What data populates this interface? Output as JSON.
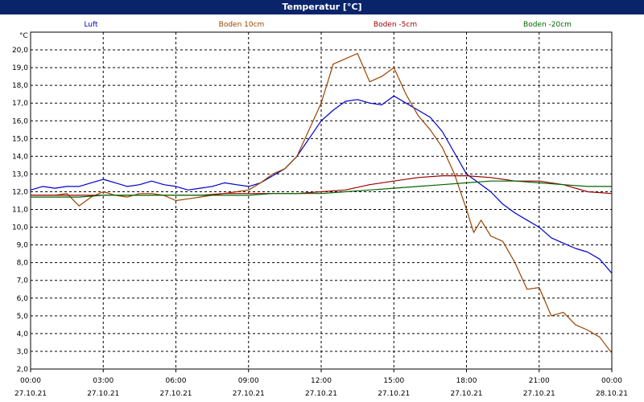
{
  "window": {
    "title": "Temperatur [°C]"
  },
  "chart_data": {
    "type": "line",
    "title": "Temperatur [°C]",
    "ylabel": "°C",
    "ylim": [
      2.0,
      21.0
    ],
    "y_ticks": [
      "2,0",
      "3,0",
      "4,0",
      "5,0",
      "6,0",
      "7,0",
      "8,0",
      "9,0",
      "10,0",
      "11,0",
      "12,0",
      "13,0",
      "14,0",
      "15,0",
      "16,0",
      "17,0",
      "18,0",
      "19,0",
      "20,0"
    ],
    "y_tick_values": [
      2,
      3,
      4,
      5,
      6,
      7,
      8,
      9,
      10,
      11,
      12,
      13,
      14,
      15,
      16,
      17,
      18,
      19,
      20
    ],
    "xlim": [
      0,
      24
    ],
    "x_ticks": [
      {
        "time": "00:00",
        "date": "27.10.21",
        "hour": 0
      },
      {
        "time": "03:00",
        "date": "27.10.21",
        "hour": 3
      },
      {
        "time": "06:00",
        "date": "27.10.21",
        "hour": 6
      },
      {
        "time": "09:00",
        "date": "27.10.21",
        "hour": 9
      },
      {
        "time": "12:00",
        "date": "27.10.21",
        "hour": 12
      },
      {
        "time": "15:00",
        "date": "27.10.21",
        "hour": 15
      },
      {
        "time": "18:00",
        "date": "27.10.21",
        "hour": 18
      },
      {
        "time": "21:00",
        "date": "27.10.21",
        "hour": 21
      },
      {
        "time": "00:00",
        "date": "28.10.21",
        "hour": 24
      }
    ],
    "grid": true,
    "legend_position": "top",
    "series": [
      {
        "name": "Luft",
        "color": "#0000cc",
        "points": [
          [
            0,
            12.1
          ],
          [
            0.5,
            12.3
          ],
          [
            1,
            12.2
          ],
          [
            1.5,
            12.3
          ],
          [
            2,
            12.3
          ],
          [
            2.5,
            12.5
          ],
          [
            3,
            12.7
          ],
          [
            3.5,
            12.5
          ],
          [
            4,
            12.3
          ],
          [
            4.5,
            12.4
          ],
          [
            5,
            12.6
          ],
          [
            5.5,
            12.4
          ],
          [
            6,
            12.3
          ],
          [
            6.5,
            12.1
          ],
          [
            7,
            12.2
          ],
          [
            7.5,
            12.3
          ],
          [
            8,
            12.5
          ],
          [
            8.5,
            12.4
          ],
          [
            9,
            12.3
          ],
          [
            9.5,
            12.5
          ],
          [
            10,
            12.9
          ],
          [
            10.5,
            13.3
          ],
          [
            11,
            14.0
          ],
          [
            11.5,
            15.0
          ],
          [
            12,
            16.0
          ],
          [
            12.5,
            16.6
          ],
          [
            13,
            17.1
          ],
          [
            13.5,
            17.2
          ],
          [
            14,
            17.0
          ],
          [
            14.5,
            16.9
          ],
          [
            15,
            17.4
          ],
          [
            15.5,
            17.0
          ],
          [
            16,
            16.6
          ],
          [
            16.5,
            16.2
          ],
          [
            17,
            15.4
          ],
          [
            17.5,
            14.2
          ],
          [
            18,
            13.0
          ],
          [
            18.5,
            12.5
          ],
          [
            19,
            12.0
          ],
          [
            19.5,
            11.3
          ],
          [
            20,
            10.8
          ],
          [
            20.5,
            10.4
          ],
          [
            21,
            10.0
          ],
          [
            21.5,
            9.4
          ],
          [
            22,
            9.1
          ],
          [
            22.5,
            8.8
          ],
          [
            23,
            8.6
          ],
          [
            23.5,
            8.2
          ],
          [
            24,
            7.4
          ]
        ]
      },
      {
        "name": "Boden 10cm",
        "color": "#994400",
        "points": [
          [
            0,
            11.8
          ],
          [
            0.5,
            11.8
          ],
          [
            1,
            11.8
          ],
          [
            1.5,
            11.9
          ],
          [
            2,
            11.2
          ],
          [
            2.5,
            11.7
          ],
          [
            3,
            12.0
          ],
          [
            3.5,
            11.8
          ],
          [
            4,
            11.7
          ],
          [
            4.5,
            11.9
          ],
          [
            5,
            11.9
          ],
          [
            5.5,
            11.8
          ],
          [
            6,
            11.5
          ],
          [
            6.5,
            11.6
          ],
          [
            7,
            11.7
          ],
          [
            7.5,
            11.8
          ],
          [
            8,
            11.9
          ],
          [
            8.5,
            12.0
          ],
          [
            9,
            12.1
          ],
          [
            9.5,
            12.5
          ],
          [
            10,
            13.0
          ],
          [
            10.5,
            13.3
          ],
          [
            11,
            14.0
          ],
          [
            11.5,
            15.5
          ],
          [
            12,
            17.0
          ],
          [
            12.5,
            19.2
          ],
          [
            13,
            19.5
          ],
          [
            13.5,
            19.8
          ],
          [
            14,
            18.2
          ],
          [
            14.5,
            18.5
          ],
          [
            15,
            19.0
          ],
          [
            15.5,
            17.5
          ],
          [
            16,
            16.3
          ],
          [
            16.5,
            15.5
          ],
          [
            17,
            14.5
          ],
          [
            17.5,
            13.0
          ],
          [
            18,
            11.0
          ],
          [
            18.3,
            9.7
          ],
          [
            18.6,
            10.4
          ],
          [
            19,
            9.5
          ],
          [
            19.5,
            9.2
          ],
          [
            20,
            8.0
          ],
          [
            20.5,
            6.5
          ],
          [
            21,
            6.6
          ],
          [
            21.5,
            5.0
          ],
          [
            22,
            5.2
          ],
          [
            22.5,
            4.5
          ],
          [
            23,
            4.2
          ],
          [
            23.5,
            3.8
          ],
          [
            24,
            2.9
          ]
        ]
      },
      {
        "name": "Boden -5cm",
        "color": "#990000",
        "points": [
          [
            0,
            11.8
          ],
          [
            1,
            11.8
          ],
          [
            2,
            11.8
          ],
          [
            3,
            11.8
          ],
          [
            4,
            11.8
          ],
          [
            5,
            11.8
          ],
          [
            6,
            11.8
          ],
          [
            7,
            11.8
          ],
          [
            8,
            11.9
          ],
          [
            9,
            11.9
          ],
          [
            10,
            11.9
          ],
          [
            11,
            11.9
          ],
          [
            12,
            12.0
          ],
          [
            13,
            12.1
          ],
          [
            14,
            12.4
          ],
          [
            15,
            12.6
          ],
          [
            16,
            12.8
          ],
          [
            17,
            12.9
          ],
          [
            18,
            12.9
          ],
          [
            19,
            12.8
          ],
          [
            20,
            12.6
          ],
          [
            21,
            12.6
          ],
          [
            22,
            12.4
          ],
          [
            23,
            12.0
          ],
          [
            24,
            11.9
          ]
        ]
      },
      {
        "name": "Boden -20cm",
        "color": "#006600",
        "points": [
          [
            0,
            11.7
          ],
          [
            1,
            11.7
          ],
          [
            2,
            11.7
          ],
          [
            3,
            11.8
          ],
          [
            4,
            11.8
          ],
          [
            5,
            11.8
          ],
          [
            6,
            11.8
          ],
          [
            7,
            11.8
          ],
          [
            8,
            11.8
          ],
          [
            9,
            11.8
          ],
          [
            10,
            11.9
          ],
          [
            11,
            11.9
          ],
          [
            12,
            11.9
          ],
          [
            13,
            12.0
          ],
          [
            14,
            12.1
          ],
          [
            15,
            12.2
          ],
          [
            16,
            12.3
          ],
          [
            17,
            12.4
          ],
          [
            18,
            12.5
          ],
          [
            19,
            12.6
          ],
          [
            20,
            12.6
          ],
          [
            21,
            12.5
          ],
          [
            22,
            12.4
          ],
          [
            23,
            12.3
          ],
          [
            24,
            12.3
          ]
        ]
      }
    ]
  }
}
